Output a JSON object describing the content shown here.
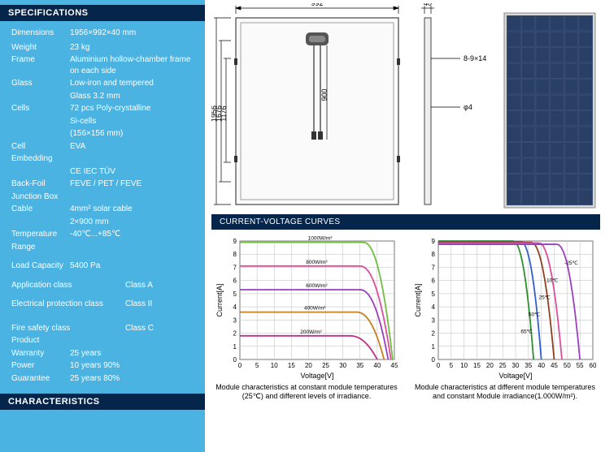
{
  "headings": {
    "specs": "SPECIFICATIONS",
    "characteristics": "CHARACTERISTICS",
    "curves": "CURRENT-VOLTAGE CURVES"
  },
  "specs": [
    {
      "label": "Dimensions",
      "value": "1956×992×40 mm",
      "wide": false
    },
    {
      "label": "",
      "value": "",
      "wide": false
    },
    {
      "label": "Weight",
      "value": "23 kg",
      "wide": false
    },
    {
      "label": "Frame",
      "value": "Aluminium hollow-chamber frame on each side",
      "wide": false
    },
    {
      "label": "Glass",
      "value": "Low-iron and tempered",
      "wide": false
    },
    {
      "label": "",
      "value": "Glass 3.2 mm",
      "wide": false
    },
    {
      "label": "Cells",
      "value": "72 pcs Poly-crystalline",
      "wide": false
    },
    {
      "label": "",
      "value": "Si-cells",
      "wide": false
    },
    {
      "label": "",
      "value": "(156×156 mm)",
      "wide": false
    },
    {
      "label": "Cell",
      "value": "EVA",
      "wide": false
    },
    {
      "label": "Embedding",
      "value": "",
      "wide": false
    },
    {
      "label": "",
      "value": "CE   IEC   TÜV",
      "wide": false
    },
    {
      "label": "Back-Foil",
      "value": "FEVE / PET / FEVE",
      "wide": false
    },
    {
      "label": "Junction Box",
      "value": "",
      "wide": false
    },
    {
      "label": "Cable",
      "value": "4mm²  solar cable",
      "wide": false
    },
    {
      "label": "",
      "value": "2×900 mm",
      "wide": false
    },
    {
      "label": "Temperature",
      "value": "-40℃...+85℃",
      "wide": false
    },
    {
      "label": "Range",
      "value": "",
      "wide": false
    },
    {
      "label": "Load Capacity",
      "value": "5400 Pa",
      "wide": false
    },
    {
      "label": "Application class",
      "value": "Class A",
      "wide": true
    },
    {
      "label": "Electrical protection class",
      "value": "Class II",
      "wide": true
    },
    {
      "label": "Fire safety class",
      "value": "Class C",
      "wide": true
    },
    {
      "label": "Product",
      "value": "",
      "wide": false
    },
    {
      "label": "Warranty",
      "value": "25 years",
      "wide": false
    },
    {
      "label": "Power",
      "value": "10 years 90%",
      "wide": false
    },
    {
      "label": "Guarantee",
      "value": "25 years 80%",
      "wide": false
    }
  ],
  "drawing": {
    "top_dim": "992",
    "side_dim": "40",
    "heights": [
      "1956",
      "1676",
      "1176"
    ],
    "cable": "900",
    "hole1": "8-9×14",
    "hole2": "φ4"
  },
  "chart_common": {
    "xlabel": "Voltage[V]",
    "ylabel": "Current[A]",
    "bg": "#ffffff",
    "grid": "#bcbcbc",
    "axis": "#000000",
    "font": 8
  },
  "chart1": {
    "xlim": [
      0,
      45
    ],
    "xtick": 5,
    "ylim": [
      0,
      9
    ],
    "ytick": 1,
    "series": [
      {
        "label": "1000W/m²",
        "color": "#6fbf3f",
        "isc": 8.9,
        "voc": 44.5,
        "knee": 36
      },
      {
        "label": "800W/m²",
        "color": "#d94f9a",
        "isc": 7.1,
        "voc": 44.0,
        "knee": 35
      },
      {
        "label": "600W/m²",
        "color": "#9b3fbf",
        "isc": 5.3,
        "voc": 43.2,
        "knee": 35
      },
      {
        "label": "400W/m²",
        "color": "#c77f1f",
        "isc": 3.6,
        "voc": 42.0,
        "knee": 34
      },
      {
        "label": "200W/m²",
        "color": "#c02f8a",
        "isc": 1.8,
        "voc": 40.0,
        "knee": 32
      }
    ],
    "caption": "Module characteristics at constant module temperatures (25℃) and different levels of irradiance."
  },
  "chart2": {
    "xlim": [
      0,
      60
    ],
    "xtick": 5,
    "xstart": 0,
    "ylim": [
      0,
      9
    ],
    "ytick": 1,
    "series": [
      {
        "label": "65℃",
        "color": "#2f8f2f",
        "isc": 9.0,
        "voc": 37,
        "knee": 29
      },
      {
        "label": "50℃",
        "color": "#2f5fd0",
        "isc": 8.95,
        "voc": 40,
        "knee": 32
      },
      {
        "label": "25℃",
        "color": "#8f3f1f",
        "isc": 8.9,
        "voc": 45,
        "knee": 36
      },
      {
        "label": "10℃",
        "color": "#d94f9a",
        "isc": 8.85,
        "voc": 48,
        "knee": 39
      },
      {
        "label": "-25℃",
        "color": "#9b3fbf",
        "isc": 8.75,
        "voc": 55,
        "knee": 46
      }
    ],
    "caption": "Module characteristics at different module temperatures and constant Module irradiance(1.000W/m²)."
  },
  "colors": {
    "panel_bg": "#4ab3e2",
    "heading_bg": "#06254a",
    "cell": "#2a3f66",
    "cell_border": "#4a5f86"
  }
}
